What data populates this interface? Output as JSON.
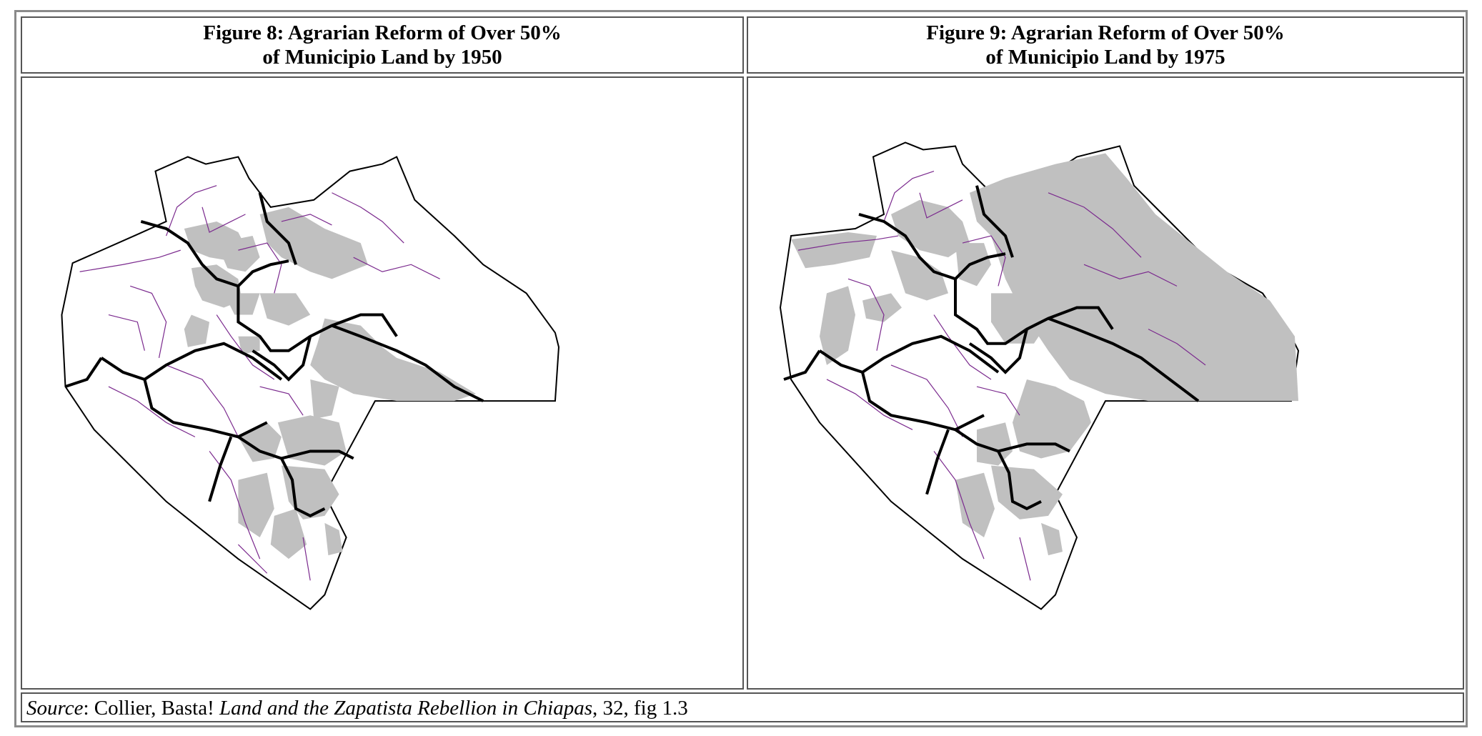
{
  "figures": [
    {
      "title_line1": "Figure 8: Agrarian Reform of Over 50%",
      "title_line2": "of Municipio Land by 1950",
      "map_icon": "chiapas-municipio-map",
      "shading_meaning_color": "#c0c0c0"
    },
    {
      "title_line1": "Figure 9: Agrarian Reform of Over 50%",
      "title_line2": "of Municipio Land by 1975",
      "map_icon": "chiapas-municipio-map",
      "shading_meaning_color": "#c0c0c0"
    }
  ],
  "source": {
    "label": "Source",
    "sep": ": ",
    "author": "Collier, Basta! ",
    "book_title": "Land and the Zapatista Rebellion in Chiapas",
    "rest": ", 32, fig 1.3"
  },
  "colors": {
    "shaded": "#c0c0c0",
    "municipio_border": "#7b2a8e",
    "region_border": "#000000"
  }
}
